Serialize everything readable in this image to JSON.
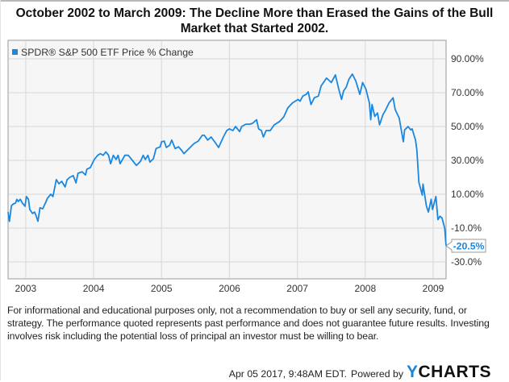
{
  "title_line1": "October 2002 to March 2009: The Decline More than Erased the Gains of the Bull",
  "title_line2": "Market that Started 2002.",
  "footnote": "For informational and educational purposes only, not a recommendation to buy or sell any security, fund, or strategy. The performance quoted represents past performance and does not guarantee future results. Investing involves risk including the potential loss of principal an investor must be willing to bear.",
  "footer": {
    "timestamp": "Apr 05 2017, 9:48AM EDT.",
    "powered_by": "Powered by",
    "brand_y": "Y",
    "brand_rest": "CHARTS"
  },
  "colors": {
    "series": "#1a87e0",
    "grid": "#dcdcdc",
    "plot_bg": "#f6f6f6",
    "axis": "#9a9a9a",
    "brand": "#1a85d6"
  },
  "chart_data": {
    "type": "line",
    "title": "October 2002 to March 2009: The Decline More than Erased the Gains of the Bull Market that Started 2002.",
    "xlabel": "",
    "ylabel": "",
    "legend": {
      "entries": [
        "SPDR® S&P 500 ETF Price % Change"
      ],
      "position": "top-left"
    },
    "grid": true,
    "xlim": [
      2002.74,
      2009.19
    ],
    "ylim": [
      -36,
      97
    ],
    "x_ticks": [
      {
        "value": 2003,
        "label": "2003"
      },
      {
        "value": 2004,
        "label": "2004"
      },
      {
        "value": 2005,
        "label": "2005"
      },
      {
        "value": 2006,
        "label": "2006"
      },
      {
        "value": 2007,
        "label": "2007"
      },
      {
        "value": 2008,
        "label": "2008"
      },
      {
        "value": 2009,
        "label": "2009"
      }
    ],
    "y_ticks": [
      {
        "value": 90,
        "label": "90.00%"
      },
      {
        "value": 70,
        "label": "70.00%"
      },
      {
        "value": 50,
        "label": "50.00%"
      },
      {
        "value": 30,
        "label": "30.00%"
      },
      {
        "value": 10,
        "label": "10.00%"
      },
      {
        "value": -10,
        "label": "-10.0%"
      },
      {
        "value": -30,
        "label": "-30.0%"
      }
    ],
    "last_value_label": "-20.5%",
    "last_value": -20.5,
    "series": [
      {
        "name": "SPDR® S&P 500 ETF Price % Change",
        "points": [
          [
            2002.74,
            -0.5
          ],
          [
            2002.76,
            -6
          ],
          [
            2002.79,
            3.3
          ],
          [
            2002.82,
            4.3
          ],
          [
            2002.85,
            4.8
          ],
          [
            2002.87,
            7
          ],
          [
            2002.89,
            5.7
          ],
          [
            2002.92,
            7
          ],
          [
            2002.95,
            4.8
          ],
          [
            2002.99,
            2.9
          ],
          [
            2003.01,
            8.6
          ],
          [
            2003.04,
            7
          ],
          [
            2003.06,
            1
          ],
          [
            2003.1,
            -1.4
          ],
          [
            2003.13,
            -0.5
          ],
          [
            2003.15,
            -2.4
          ],
          [
            2003.18,
            -6
          ],
          [
            2003.21,
            2
          ],
          [
            2003.25,
            1.4
          ],
          [
            2003.29,
            4.8
          ],
          [
            2003.32,
            7.6
          ],
          [
            2003.37,
            10
          ],
          [
            2003.4,
            8.6
          ],
          [
            2003.45,
            18.6
          ],
          [
            2003.49,
            16.2
          ],
          [
            2003.53,
            17.6
          ],
          [
            2003.58,
            14.3
          ],
          [
            2003.61,
            18.6
          ],
          [
            2003.65,
            20
          ],
          [
            2003.7,
            21
          ],
          [
            2003.74,
            16.7
          ],
          [
            2003.77,
            22.4
          ],
          [
            2003.83,
            23.3
          ],
          [
            2003.88,
            21.4
          ],
          [
            2003.9,
            24.8
          ],
          [
            2003.95,
            25.7
          ],
          [
            2004.01,
            30.5
          ],
          [
            2004.06,
            33
          ],
          [
            2004.1,
            34
          ],
          [
            2004.14,
            33
          ],
          [
            2004.18,
            35
          ],
          [
            2004.22,
            33
          ],
          [
            2004.25,
            28
          ],
          [
            2004.29,
            33
          ],
          [
            2004.33,
            30.5
          ],
          [
            2004.36,
            33
          ],
          [
            2004.39,
            28
          ],
          [
            2004.46,
            33
          ],
          [
            2004.51,
            33
          ],
          [
            2004.57,
            30
          ],
          [
            2004.63,
            27
          ],
          [
            2004.69,
            29.5
          ],
          [
            2004.73,
            33
          ],
          [
            2004.76,
            30.5
          ],
          [
            2004.8,
            33
          ],
          [
            2004.83,
            29
          ],
          [
            2004.88,
            31
          ],
          [
            2004.92,
            37
          ],
          [
            2004.98,
            38
          ],
          [
            2005.0,
            41
          ],
          [
            2005.04,
            41.4
          ],
          [
            2005.07,
            37.6
          ],
          [
            2005.12,
            39
          ],
          [
            2005.15,
            42
          ],
          [
            2005.2,
            37
          ],
          [
            2005.25,
            38
          ],
          [
            2005.3,
            35.7
          ],
          [
            2005.33,
            34
          ],
          [
            2005.42,
            37.6
          ],
          [
            2005.48,
            40
          ],
          [
            2005.54,
            41.4
          ],
          [
            2005.6,
            44.8
          ],
          [
            2005.63,
            44.8
          ],
          [
            2005.68,
            42
          ],
          [
            2005.73,
            43.8
          ],
          [
            2005.79,
            40.5
          ],
          [
            2005.84,
            37.6
          ],
          [
            2005.91,
            43.8
          ],
          [
            2005.96,
            47.6
          ],
          [
            2006.0,
            48.6
          ],
          [
            2006.05,
            47.6
          ],
          [
            2006.09,
            50
          ],
          [
            2006.15,
            47
          ],
          [
            2006.18,
            50
          ],
          [
            2006.24,
            51.4
          ],
          [
            2006.3,
            51.4
          ],
          [
            2006.34,
            51.9
          ],
          [
            2006.4,
            54
          ],
          [
            2006.43,
            48.6
          ],
          [
            2006.47,
            47.6
          ],
          [
            2006.5,
            43.8
          ],
          [
            2006.54,
            47.6
          ],
          [
            2006.6,
            47.6
          ],
          [
            2006.66,
            51
          ],
          [
            2006.74,
            53
          ],
          [
            2006.8,
            55.7
          ],
          [
            2006.86,
            61
          ],
          [
            2006.93,
            64
          ],
          [
            2007.01,
            66
          ],
          [
            2007.04,
            65
          ],
          [
            2007.08,
            68
          ],
          [
            2007.13,
            69
          ],
          [
            2007.16,
            70.5
          ],
          [
            2007.2,
            63
          ],
          [
            2007.25,
            67
          ],
          [
            2007.31,
            68
          ],
          [
            2007.35,
            74
          ],
          [
            2007.43,
            78.6
          ],
          [
            2007.5,
            76
          ],
          [
            2007.56,
            80.5
          ],
          [
            2007.61,
            72
          ],
          [
            2007.65,
            66
          ],
          [
            2007.68,
            71
          ],
          [
            2007.72,
            73.3
          ],
          [
            2007.76,
            78
          ],
          [
            2007.81,
            81
          ],
          [
            2007.86,
            77
          ],
          [
            2007.92,
            69
          ],
          [
            2007.96,
            76
          ],
          [
            2008.01,
            72
          ],
          [
            2008.06,
            64
          ],
          [
            2008.08,
            54
          ],
          [
            2008.1,
            63
          ],
          [
            2008.14,
            56
          ],
          [
            2008.18,
            58
          ],
          [
            2008.21,
            51
          ],
          [
            2008.26,
            57
          ],
          [
            2008.29,
            59
          ],
          [
            2008.35,
            64
          ],
          [
            2008.41,
            67
          ],
          [
            2008.44,
            60
          ],
          [
            2008.5,
            55
          ],
          [
            2008.56,
            41
          ],
          [
            2008.58,
            48
          ],
          [
            2008.63,
            50
          ],
          [
            2008.67,
            48
          ],
          [
            2008.69,
            48.6
          ],
          [
            2008.74,
            42
          ],
          [
            2008.76,
            36
          ],
          [
            2008.79,
            17
          ],
          [
            2008.81,
            14
          ],
          [
            2008.84,
            9.5
          ],
          [
            2008.85,
            16
          ],
          [
            2008.9,
            3
          ],
          [
            2008.93,
            -0.5
          ],
          [
            2008.97,
            7
          ],
          [
            2008.99,
            1
          ],
          [
            2009.04,
            8.6
          ],
          [
            2009.07,
            -5
          ],
          [
            2009.1,
            -3
          ],
          [
            2009.13,
            -4
          ],
          [
            2009.17,
            -10
          ],
          [
            2009.19,
            -20.5
          ]
        ]
      }
    ]
  }
}
